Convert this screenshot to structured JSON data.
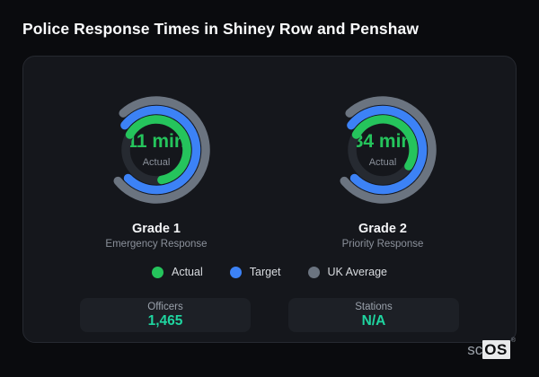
{
  "page": {
    "title": "Police Response Times in Shiney Row and Penshaw"
  },
  "colors": {
    "actual_green": "#25c45c",
    "target_blue": "#3c82f6",
    "uk_average_gray": "#6b7480",
    "value_accent_teal": "#1fd5a0",
    "ring_track": "#262a31",
    "card_background": "#15171c",
    "page_background": "#0a0b0e"
  },
  "chart_data": [
    {
      "type": "gauge",
      "title": "Grade 1",
      "subtitle": "Emergency Response",
      "center_value": "11 min",
      "center_label": "Actual",
      "rings": [
        {
          "name": "UK Average",
          "color": "#6b7480",
          "radius": 55,
          "start_deg": -42,
          "end_deg": 231,
          "track": false
        },
        {
          "name": "Target",
          "color": "#3c82f6",
          "radius": 44.5,
          "start_deg": -52,
          "end_deg": 225,
          "track": false
        },
        {
          "name": "Actual",
          "color": "#25c45c",
          "radius": 34,
          "start_deg": -60,
          "end_deg": 170,
          "track": true
        }
      ]
    },
    {
      "type": "gauge",
      "title": "Grade 2",
      "subtitle": "Priority Response",
      "center_value": "34 min",
      "center_label": "Actual",
      "rings": [
        {
          "name": "UK Average",
          "color": "#6b7480",
          "radius": 55,
          "start_deg": -42,
          "end_deg": 231,
          "track": false
        },
        {
          "name": "Target",
          "color": "#3c82f6",
          "radius": 44.5,
          "start_deg": -52,
          "end_deg": 225,
          "track": false
        },
        {
          "name": "Actual",
          "color": "#25c45c",
          "radius": 34,
          "start_deg": -60,
          "end_deg": 122,
          "track": true
        }
      ]
    }
  ],
  "legend": {
    "items": [
      {
        "label": "Actual",
        "color": "#25c45c"
      },
      {
        "label": "Target",
        "color": "#3c82f6"
      },
      {
        "label": "UK Average",
        "color": "#6b7480"
      }
    ]
  },
  "stats": [
    {
      "label": "Officers",
      "value": "1,465"
    },
    {
      "label": "Stations",
      "value": "N/A"
    }
  ],
  "logo": {
    "prefix": "sc",
    "box": "OS",
    "reg": "®"
  }
}
